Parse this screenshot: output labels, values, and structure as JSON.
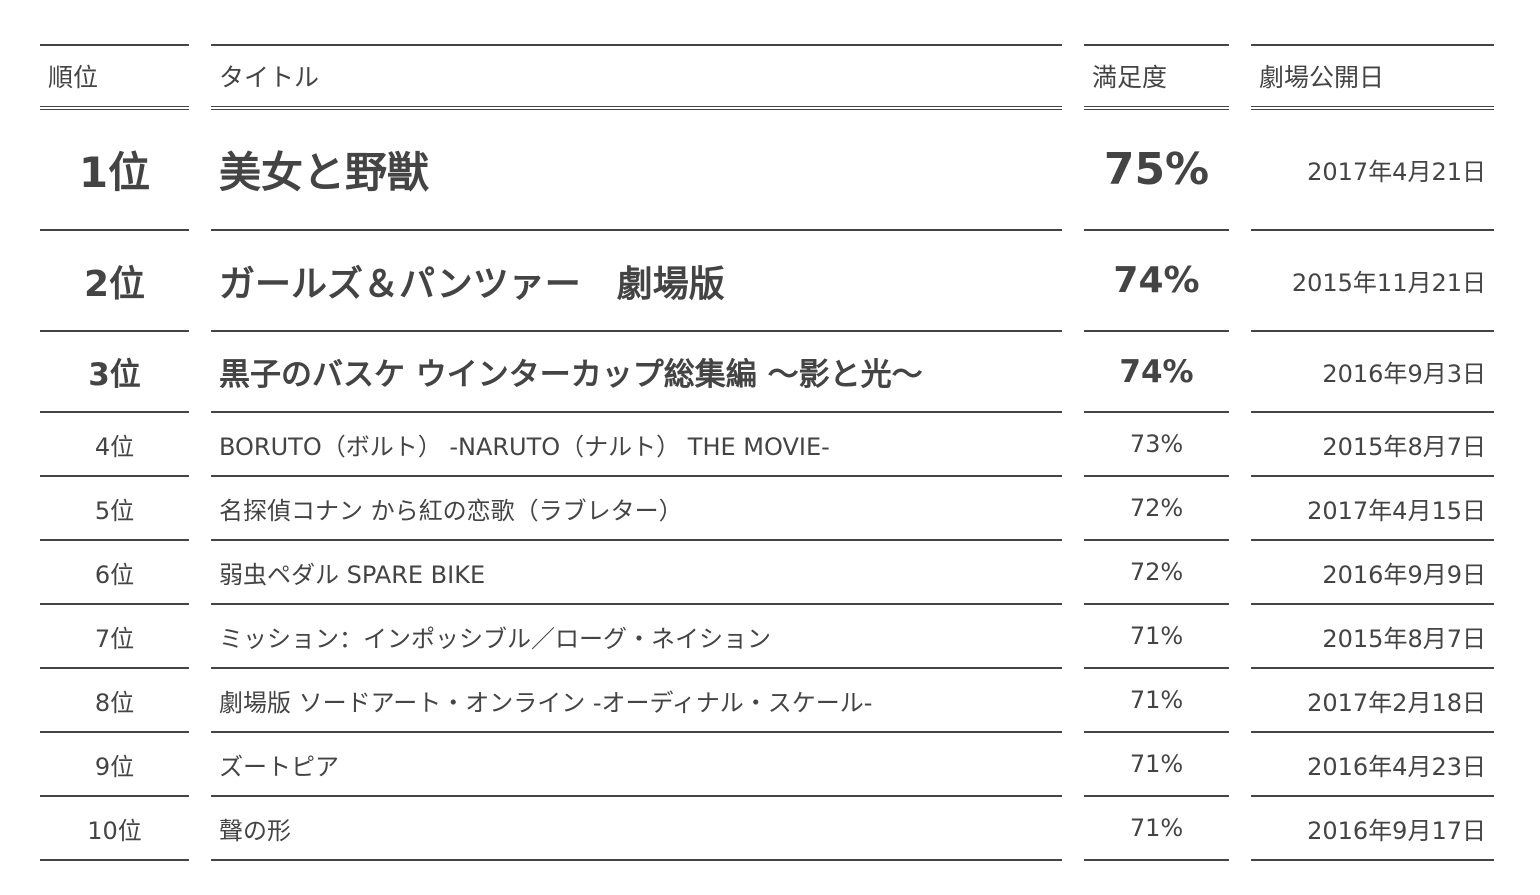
{
  "headers": {
    "rank": "順位",
    "title": "タイトル",
    "satisfaction": "満足度",
    "release_date": "劇場公開日"
  },
  "rows": [
    {
      "rank": "1位",
      "title": "美女と野獣",
      "satisfaction": "75%",
      "date": "2017年4月21日"
    },
    {
      "rank": "2位",
      "title": "ガールズ＆パンツァー　劇場版",
      "satisfaction": "74%",
      "date": "2015年11月21日"
    },
    {
      "rank": "3位",
      "title": "黒子のバスケ ウインターカップ総集編 ～影と光～",
      "satisfaction": "74%",
      "date": "2016年9月3日"
    },
    {
      "rank": "4位",
      "title": "BORUTO（ボルト） -NARUTO（ナルト） THE MOVIE-",
      "satisfaction": "73%",
      "date": "2015年8月7日"
    },
    {
      "rank": "5位",
      "title": "名探偵コナン から紅の恋歌（ラブレター）",
      "satisfaction": "72%",
      "date": "2017年4月15日"
    },
    {
      "rank": "6位",
      "title": "弱虫ペダル SPARE BIKE",
      "satisfaction": "72%",
      "date": "2016年9月9日"
    },
    {
      "rank": "7位",
      "title": "ミッション：インポッシブル／ローグ・ネイション",
      "satisfaction": "71%",
      "date": "2015年8月7日"
    },
    {
      "rank": "8位",
      "title": "劇場版 ソードアート・オンライン -オーディナル・スケール-",
      "satisfaction": "71%",
      "date": "2017年2月18日"
    },
    {
      "rank": "9位",
      "title": "ズートピア",
      "satisfaction": "71%",
      "date": "2016年4月23日"
    },
    {
      "rank": "10位",
      "title": "聲の形",
      "satisfaction": "71%",
      "date": "2016年9月17日"
    }
  ]
}
